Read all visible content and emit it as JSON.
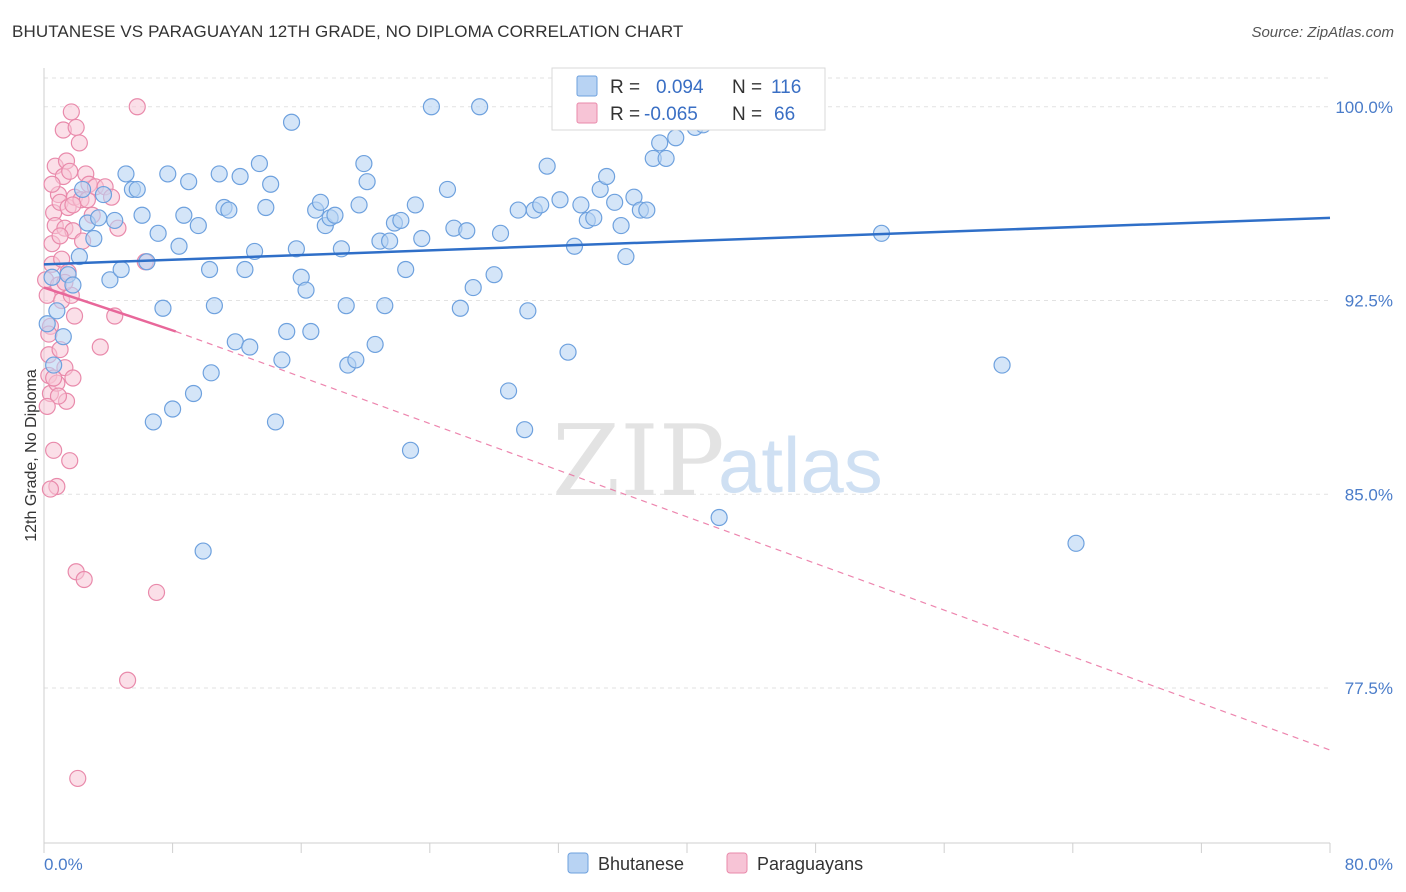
{
  "header": {
    "title": "BHUTANESE VS PARAGUAYAN 12TH GRADE, NO DIPLOMA CORRELATION CHART",
    "source": "Source: ZipAtlas.com"
  },
  "watermark": {
    "zip": "ZIP",
    "atlas": "atlas"
  },
  "colors": {
    "blue_fill": "#b8d3f3",
    "blue_stroke": "#6ea1de",
    "blue_line": "#2f6fc8",
    "pink_fill": "#f7c4d6",
    "pink_stroke": "#e98aab",
    "pink_line": "#e8679a",
    "grid": "#e2e2e2",
    "axis_text": "#4a7cc9"
  },
  "chart_data": {
    "type": "scatter",
    "title": "BHUTANESE VS PARAGUAYAN 12TH GRADE, NO DIPLOMA CORRELATION CHART",
    "xlabel": "",
    "ylabel": "12th Grade, No Diploma",
    "xlim": [
      0,
      80
    ],
    "ylim": [
      71.5,
      101.5
    ],
    "y_ticks": [
      77.5,
      85.0,
      92.5,
      100.0
    ],
    "y_tick_labels": [
      "77.5%",
      "85.0%",
      "92.5%",
      "100.0%"
    ],
    "x_tick_labels": [
      "0.0%",
      "80.0%"
    ],
    "grid": true,
    "legend": {
      "position": "top-center",
      "entries": [
        {
          "r_label": "R =",
          "r_value": "0.094",
          "n_label": "N =",
          "n_value": "116"
        },
        {
          "r_label": "R =",
          "r_value": "-0.065",
          "n_label": "N =",
          "n_value": "66"
        }
      ]
    },
    "series": [
      {
        "name": "Bhutanese",
        "trend": {
          "x": [
            0,
            80
          ],
          "y": [
            93.9,
            95.7
          ],
          "solid": true
        },
        "points": [
          [
            0.2,
            91.6
          ],
          [
            0.5,
            93.4
          ],
          [
            0.8,
            92.1
          ],
          [
            1.2,
            91.1
          ],
          [
            1.5,
            93.5
          ],
          [
            1.8,
            93.1
          ],
          [
            2.2,
            94.2
          ],
          [
            2.7,
            95.5
          ],
          [
            3.1,
            94.9
          ],
          [
            3.4,
            95.7
          ],
          [
            3.7,
            96.6
          ],
          [
            4.1,
            93.3
          ],
          [
            4.4,
            95.6
          ],
          [
            4.8,
            93.7
          ],
          [
            5.1,
            97.4
          ],
          [
            5.5,
            96.8
          ],
          [
            5.8,
            96.8
          ],
          [
            6.1,
            95.8
          ],
          [
            6.4,
            94.0
          ],
          [
            6.8,
            87.8
          ],
          [
            7.1,
            95.1
          ],
          [
            7.4,
            92.2
          ],
          [
            7.7,
            97.4
          ],
          [
            8.0,
            88.3
          ],
          [
            8.4,
            94.6
          ],
          [
            8.7,
            95.8
          ],
          [
            9.0,
            97.1
          ],
          [
            9.3,
            88.9
          ],
          [
            9.6,
            95.4
          ],
          [
            9.9,
            82.8
          ],
          [
            10.3,
            93.7
          ],
          [
            10.6,
            92.3
          ],
          [
            10.9,
            97.4
          ],
          [
            11.2,
            96.1
          ],
          [
            11.5,
            96.0
          ],
          [
            11.9,
            90.9
          ],
          [
            12.2,
            97.3
          ],
          [
            12.5,
            93.7
          ],
          [
            12.8,
            90.7
          ],
          [
            13.1,
            94.4
          ],
          [
            13.4,
            97.8
          ],
          [
            13.8,
            96.1
          ],
          [
            14.1,
            97.0
          ],
          [
            14.4,
            87.8
          ],
          [
            14.8,
            90.2
          ],
          [
            15.1,
            91.3
          ],
          [
            15.4,
            99.4
          ],
          [
            15.7,
            94.5
          ],
          [
            16.0,
            93.4
          ],
          [
            16.3,
            92.9
          ],
          [
            16.6,
            91.3
          ],
          [
            16.9,
            96.0
          ],
          [
            17.2,
            96.3
          ],
          [
            17.5,
            95.4
          ],
          [
            17.8,
            95.7
          ],
          [
            18.1,
            95.8
          ],
          [
            18.5,
            94.5
          ],
          [
            18.8,
            92.3
          ],
          [
            18.9,
            90.0
          ],
          [
            19.4,
            90.2
          ],
          [
            19.6,
            96.2
          ],
          [
            19.9,
            97.8
          ],
          [
            20.1,
            97.1
          ],
          [
            20.6,
            90.8
          ],
          [
            20.9,
            94.8
          ],
          [
            21.2,
            92.3
          ],
          [
            21.5,
            94.8
          ],
          [
            21.8,
            95.5
          ],
          [
            22.2,
            95.6
          ],
          [
            22.5,
            93.7
          ],
          [
            22.8,
            86.7
          ],
          [
            23.1,
            96.2
          ],
          [
            23.5,
            94.9
          ],
          [
            24.1,
            100.0
          ],
          [
            25.1,
            96.8
          ],
          [
            25.5,
            95.3
          ],
          [
            25.9,
            92.2
          ],
          [
            26.3,
            95.2
          ],
          [
            26.7,
            93.0
          ],
          [
            27.1,
            100.0
          ],
          [
            28.0,
            93.5
          ],
          [
            28.4,
            95.1
          ],
          [
            28.9,
            89.0
          ],
          [
            29.5,
            96.0
          ],
          [
            29.9,
            87.5
          ],
          [
            30.1,
            92.1
          ],
          [
            30.5,
            96.0
          ],
          [
            30.9,
            96.2
          ],
          [
            31.3,
            97.7
          ],
          [
            32.1,
            96.4
          ],
          [
            32.6,
            90.5
          ],
          [
            33.0,
            94.6
          ],
          [
            33.4,
            96.2
          ],
          [
            33.8,
            95.6
          ],
          [
            34.2,
            95.7
          ],
          [
            34.6,
            96.8
          ],
          [
            35.0,
            97.3
          ],
          [
            35.5,
            96.3
          ],
          [
            35.9,
            95.4
          ],
          [
            36.2,
            94.2
          ],
          [
            36.7,
            96.5
          ],
          [
            37.1,
            96.0
          ],
          [
            37.5,
            96.0
          ],
          [
            37.9,
            98.0
          ],
          [
            38.3,
            98.6
          ],
          [
            38.7,
            98.0
          ],
          [
            39.3,
            98.8
          ],
          [
            40.5,
            99.2
          ],
          [
            41.0,
            99.3
          ],
          [
            42.0,
            84.1
          ],
          [
            52.1,
            95.1
          ],
          [
            59.6,
            90.0
          ],
          [
            64.2,
            83.1
          ],
          [
            10.4,
            89.7
          ],
          [
            2.4,
            96.8
          ],
          [
            0.6,
            90.0
          ]
        ]
      },
      {
        "name": "Paraguayans",
        "trend": {
          "x": [
            0,
            8.2
          ],
          "y": [
            93.0,
            91.3
          ],
          "solid": true,
          "extended": {
            "x": [
              8.2,
              80
            ],
            "y": [
              91.3,
              75.1
            ]
          }
        },
        "points": [
          [
            0.1,
            93.3
          ],
          [
            0.2,
            92.7
          ],
          [
            0.3,
            90.4
          ],
          [
            0.3,
            89.6
          ],
          [
            0.4,
            88.9
          ],
          [
            0.4,
            91.5
          ],
          [
            0.5,
            93.9
          ],
          [
            0.5,
            94.7
          ],
          [
            0.6,
            95.9
          ],
          [
            0.6,
            86.7
          ],
          [
            0.7,
            97.7
          ],
          [
            0.7,
            95.4
          ],
          [
            0.8,
            89.3
          ],
          [
            0.8,
            85.3
          ],
          [
            0.9,
            96.6
          ],
          [
            0.9,
            93.1
          ],
          [
            1.0,
            90.6
          ],
          [
            1.0,
            96.3
          ],
          [
            1.1,
            94.1
          ],
          [
            1.1,
            92.5
          ],
          [
            1.2,
            97.3
          ],
          [
            1.2,
            99.1
          ],
          [
            1.3,
            89.9
          ],
          [
            1.3,
            95.3
          ],
          [
            1.4,
            97.9
          ],
          [
            1.4,
            88.6
          ],
          [
            1.5,
            93.6
          ],
          [
            1.5,
            96.1
          ],
          [
            1.6,
            86.3
          ],
          [
            1.6,
            97.5
          ],
          [
            1.7,
            92.7
          ],
          [
            1.7,
            99.8
          ],
          [
            1.8,
            95.2
          ],
          [
            1.8,
            89.5
          ],
          [
            1.9,
            96.5
          ],
          [
            1.9,
            91.9
          ],
          [
            2.0,
            99.2
          ],
          [
            2.0,
            82.0
          ],
          [
            2.1,
            74.0
          ],
          [
            2.2,
            98.6
          ],
          [
            2.3,
            96.4
          ],
          [
            2.4,
            94.8
          ],
          [
            2.5,
            81.7
          ],
          [
            2.6,
            97.4
          ],
          [
            2.7,
            96.4
          ],
          [
            2.8,
            97.0
          ],
          [
            3.0,
            95.8
          ],
          [
            3.2,
            96.9
          ],
          [
            3.5,
            90.7
          ],
          [
            3.8,
            96.9
          ],
          [
            4.2,
            96.5
          ],
          [
            4.4,
            91.9
          ],
          [
            4.6,
            95.3
          ],
          [
            5.2,
            77.8
          ],
          [
            5.8,
            100.0
          ],
          [
            6.3,
            94.0
          ],
          [
            7.0,
            81.2
          ],
          [
            0.4,
            85.2
          ],
          [
            0.9,
            88.8
          ],
          [
            1.0,
            95.0
          ],
          [
            0.6,
            89.5
          ],
          [
            0.3,
            91.2
          ],
          [
            0.2,
            88.4
          ],
          [
            1.3,
            93.2
          ],
          [
            0.5,
            97.0
          ],
          [
            1.8,
            96.2
          ]
        ]
      }
    ]
  },
  "bottom_legend": {
    "items": [
      "Bhutanese",
      "Paraguayans"
    ]
  }
}
